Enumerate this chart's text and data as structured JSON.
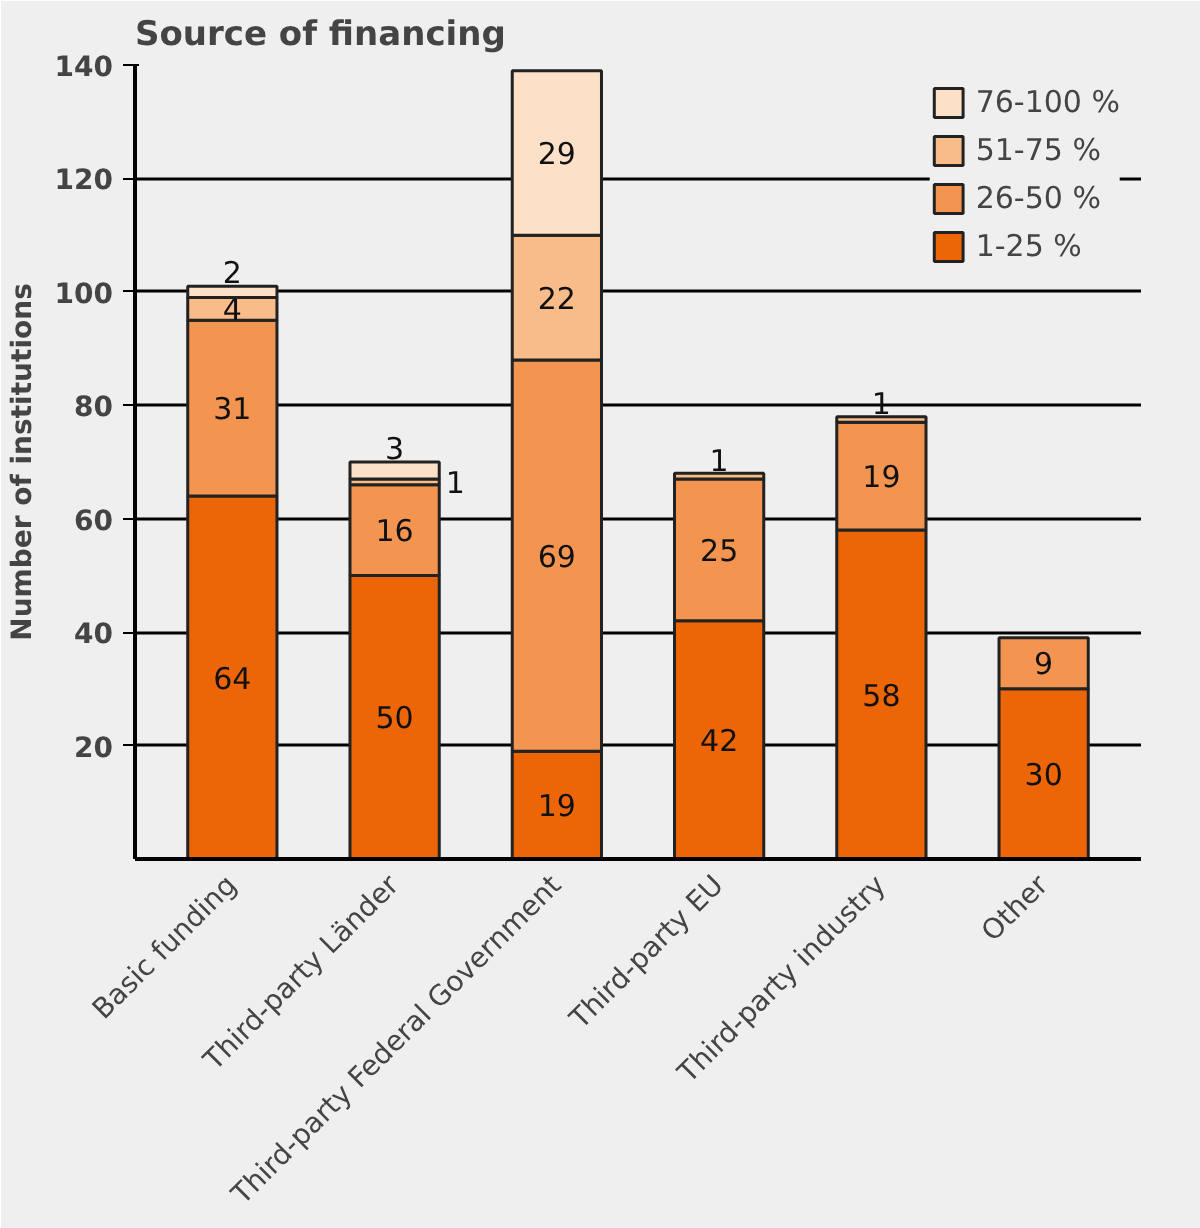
{
  "chart_data": {
    "type": "bar",
    "title": "Source of financing",
    "ylabel": "Number of institutions",
    "categories": [
      "Basic funding",
      "Third-party Länder",
      "Third-party Federal Government",
      "Third-party EU",
      "Third-party industry",
      "Other"
    ],
    "stacked": true,
    "data_labels": true,
    "grid": "y",
    "legend": "top right",
    "ylim": [
      0,
      140
    ],
    "yticks": [
      20,
      40,
      60,
      80,
      100,
      120,
      140
    ],
    "series": [
      {
        "name": "1-25 %",
        "color": "#ec6608",
        "values": [
          64,
          50,
          19,
          42,
          58,
          30
        ]
      },
      {
        "name": "26-50 %",
        "color": "#f39550",
        "values": [
          31,
          16,
          69,
          25,
          19,
          9
        ]
      },
      {
        "name": "51-75 %",
        "color": "#f8bb8a",
        "values": [
          4,
          1,
          22,
          1,
          1,
          null
        ]
      },
      {
        "name": "76-100 %",
        "color": "#fde0c8",
        "values": [
          2,
          3,
          29,
          null,
          null,
          null
        ]
      }
    ]
  }
}
